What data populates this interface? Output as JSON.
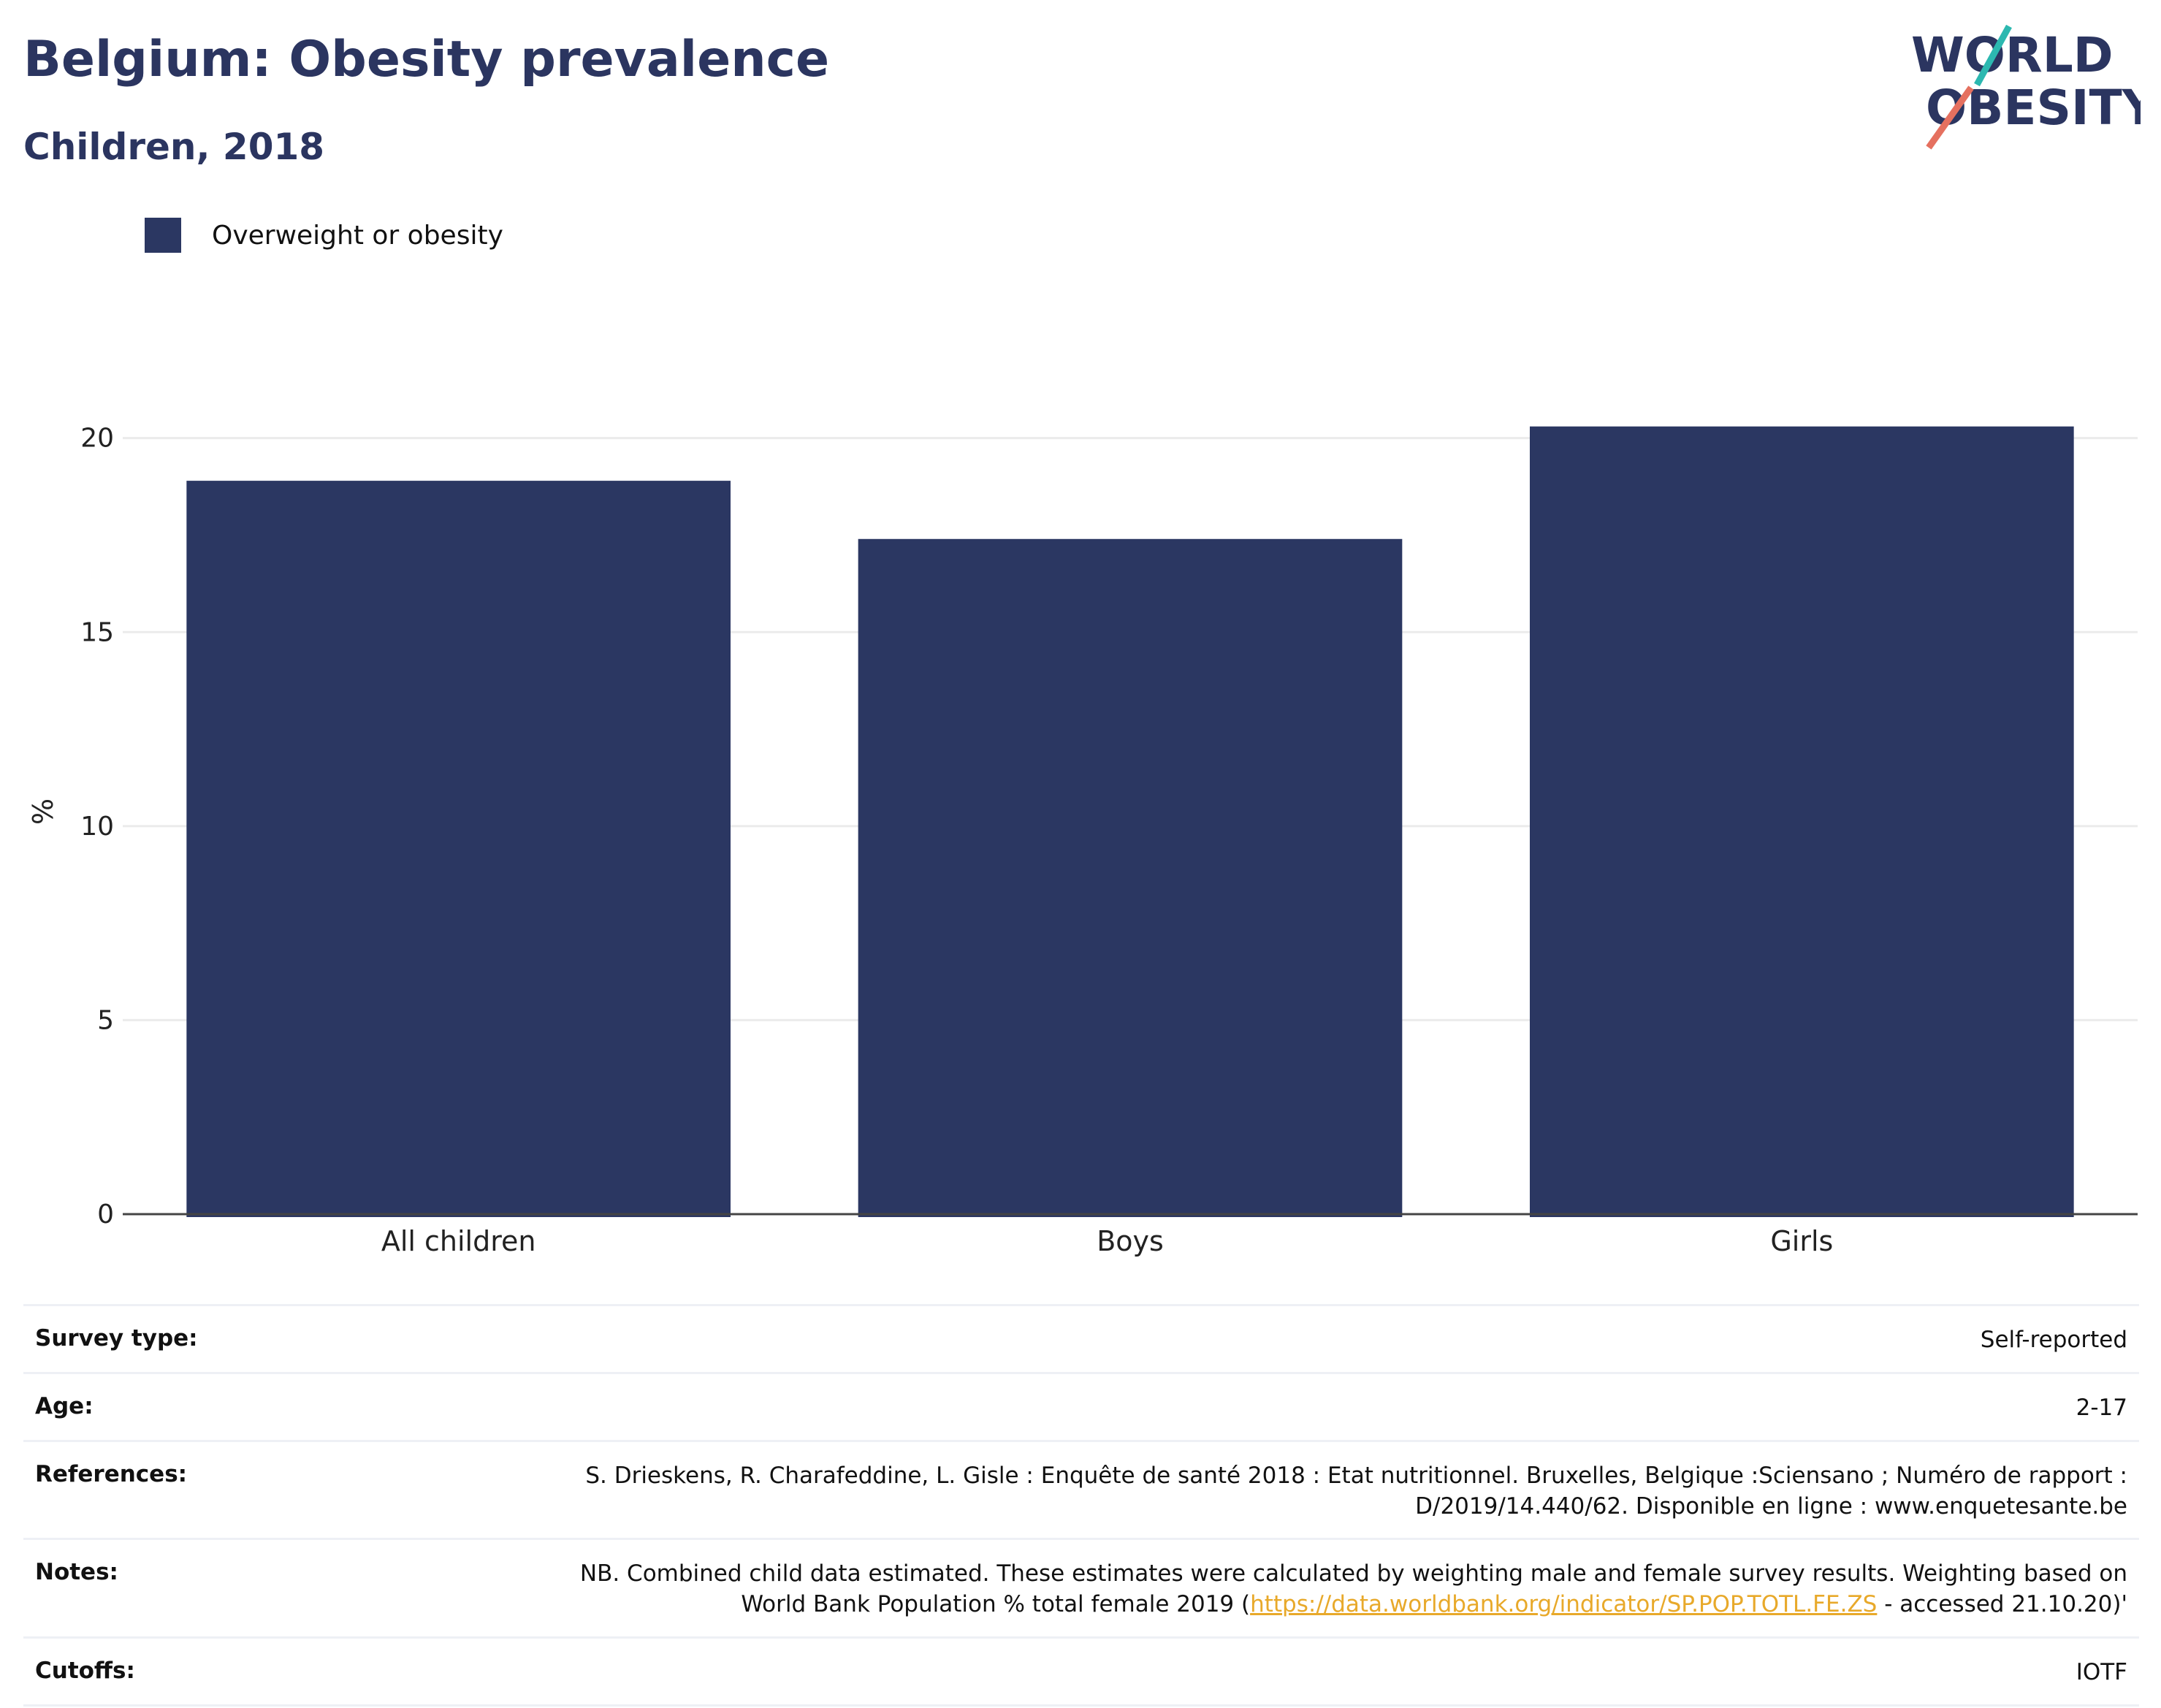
{
  "header": {
    "title": "Belgium: Obesity prevalence",
    "subtitle": "Children, 2018"
  },
  "logo": {
    "line1": "WORLD",
    "line2": "OBESITY",
    "accent_teal": "#2cb8b0",
    "accent_coral": "#e5705f",
    "text_color": "#2b3560"
  },
  "legend": {
    "items": [
      {
        "label": "Overweight or obesity",
        "color": "#2b3762"
      }
    ]
  },
  "chart_data": {
    "type": "bar",
    "categories": [
      "All children",
      "Boys",
      "Girls"
    ],
    "series": [
      {
        "name": "Overweight or obesity",
        "values": [
          18.9,
          17.4,
          20.3
        ],
        "color": "#2b3762"
      }
    ],
    "ylabel": "%",
    "ylim": [
      0,
      21.5
    ],
    "yticks": [
      0,
      5,
      10,
      15,
      20
    ],
    "grid": true,
    "legend_position": "top-left"
  },
  "meta": {
    "survey_type": {
      "label": "Survey type:",
      "value": "Self-reported"
    },
    "age": {
      "label": "Age:",
      "value": "2-17"
    },
    "references": {
      "label": "References:",
      "line1": "S. Drieskens, R. Charafeddine, L. Gisle : Enquête de santé 2018 : Etat nutritionnel. Bruxelles, Belgique :Sciensano ; Numéro de rapport :",
      "line2": "D/2019/14.440/62. Disponible en ligne : www.enquetesante.be"
    },
    "notes": {
      "label": "Notes:",
      "line1": "NB. Combined child data estimated. These estimates were calculated by weighting male and female survey results. Weighting based on",
      "line2_pre": "World Bank Population % total female 2019 (",
      "link": "https://data.worldbank.org/indicator/SP.POP.TOTL.FE.ZS",
      "line2_post": " - accessed 21.10.20)'"
    },
    "cutoffs": {
      "label": "Cutoffs:",
      "value": "IOTF"
    }
  }
}
